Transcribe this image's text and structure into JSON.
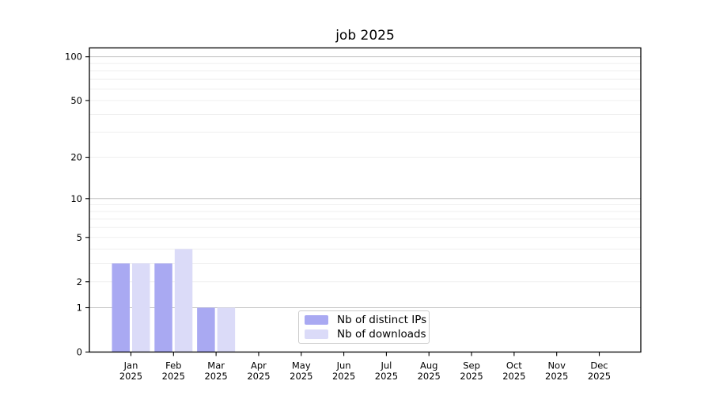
{
  "chart_data": {
    "type": "bar",
    "title": "job 2025",
    "categories": [
      "Jan",
      "Feb",
      "Mar",
      "Apr",
      "May",
      "Jun",
      "Jul",
      "Aug",
      "Sep",
      "Oct",
      "Nov",
      "Dec"
    ],
    "x_tick_second_line": "2025",
    "xlabel": "",
    "ylabel": "",
    "series": [
      {
        "name": "Nb of distinct IPs",
        "color": "#a9a9f2",
        "values": [
          3,
          3,
          1,
          0,
          0,
          0,
          0,
          0,
          0,
          0,
          0,
          0
        ]
      },
      {
        "name": "Nb of downloads",
        "color": "#dbdbf8",
        "values": [
          3,
          4,
          1,
          0,
          0,
          0,
          0,
          0,
          0,
          0,
          0,
          0
        ]
      }
    ],
    "y_axis": {
      "scale": "log1p",
      "tick_labels": [
        0,
        1,
        2,
        5,
        10,
        20,
        50,
        100
      ],
      "major_gridlines": [
        1,
        10,
        100
      ],
      "minor_gridlines": [
        2,
        3,
        4,
        5,
        6,
        7,
        8,
        9,
        20,
        30,
        40,
        50,
        60,
        70,
        80,
        90
      ],
      "ylim": [
        0,
        115
      ]
    },
    "legend": {
      "position": "lower center"
    },
    "colors": {
      "grid_major": "#c4c4c4",
      "grid_minor": "#efefef",
      "axis": "#000000",
      "text": "#000000",
      "background": "#ffffff"
    }
  }
}
